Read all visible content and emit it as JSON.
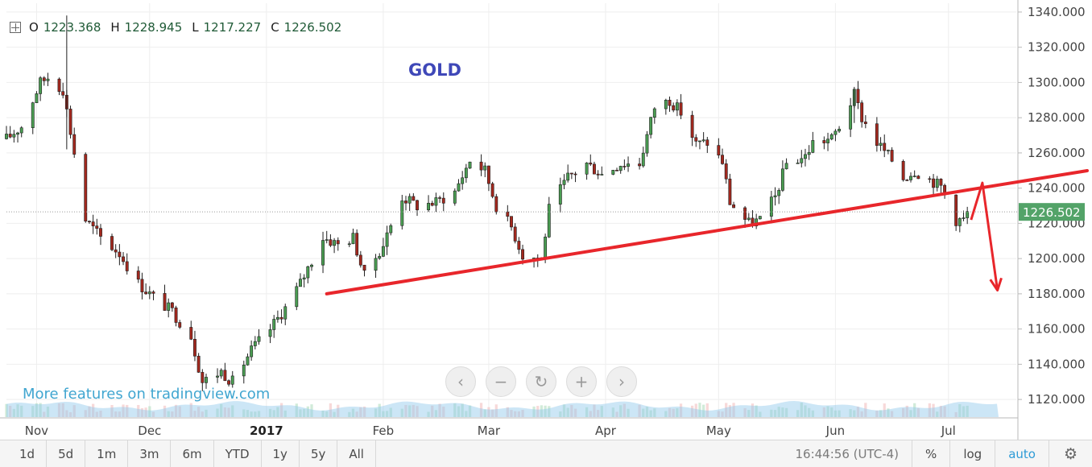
{
  "ohlc": {
    "o_label": "O",
    "o": "1223.368",
    "h_label": "H",
    "h": "1228.945",
    "l_label": "L",
    "l": "1217.227",
    "c_label": "C",
    "c": "1226.502"
  },
  "watermark": "More features on tradingview.com",
  "nav": {
    "left_icon": "‹",
    "zoom_out_icon": "−",
    "reset_icon": "↻",
    "zoom_in_icon": "+",
    "right_icon": "›"
  },
  "toolbar": {
    "ranges": [
      "1d",
      "5d",
      "1m",
      "3m",
      "6m",
      "YTD",
      "1y",
      "5y",
      "All"
    ],
    "clock": "16:44:56 (UTC-4)",
    "percent": "%",
    "log": "log",
    "auto": "auto",
    "settings_icon": "⚙"
  },
  "colors": {
    "up": "#4a9d52",
    "down": "#a3281e",
    "trendline": "#e8262b",
    "last_price": "#53a368",
    "title": "#3f48b8"
  },
  "chart_data": {
    "type": "candlestick",
    "title": "GOLD",
    "ylim": [
      1110,
      1345
    ],
    "yticks": [
      "1120.000",
      "1140.000",
      "1160.000",
      "1180.000",
      "1200.000",
      "1220.000",
      "1240.000",
      "1260.000",
      "1280.000",
      "1300.000",
      "1320.000",
      "1340.000"
    ],
    "xticks": [
      {
        "label": "Nov",
        "date": "2016-11-01"
      },
      {
        "label": "Dec",
        "date": "2016-12-01"
      },
      {
        "label": "2017",
        "date": "2017-01-01"
      },
      {
        "label": "Feb",
        "date": "2017-02-01"
      },
      {
        "label": "Mar",
        "date": "2017-03-01"
      },
      {
        "label": "Apr",
        "date": "2017-04-01"
      },
      {
        "label": "May",
        "date": "2017-05-01"
      },
      {
        "label": "Jun",
        "date": "2017-06-01"
      },
      {
        "label": "Jul",
        "date": "2017-07-01"
      }
    ],
    "x_start": "2016-10-24",
    "x_end": "2017-07-19",
    "last_price": "1226.502",
    "anchors": [
      {
        "date": "2016-10-24",
        "price": 1268
      },
      {
        "date": "2016-10-28",
        "price": 1275
      },
      {
        "date": "2016-11-02",
        "price": 1300
      },
      {
        "date": "2016-11-04",
        "price": 1303
      },
      {
        "date": "2016-11-08",
        "price": 1296
      },
      {
        "date": "2016-11-11",
        "price": 1260
      },
      {
        "date": "2016-11-14",
        "price": 1222
      },
      {
        "date": "2016-11-18",
        "price": 1212
      },
      {
        "date": "2016-11-23",
        "price": 1203
      },
      {
        "date": "2016-11-28",
        "price": 1186
      },
      {
        "date": "2016-12-02",
        "price": 1178
      },
      {
        "date": "2016-12-07",
        "price": 1170
      },
      {
        "date": "2016-12-12",
        "price": 1156
      },
      {
        "date": "2016-12-15",
        "price": 1130
      },
      {
        "date": "2016-12-20",
        "price": 1136
      },
      {
        "date": "2016-12-23",
        "price": 1130
      },
      {
        "date": "2016-12-28",
        "price": 1148
      },
      {
        "date": "2017-01-02",
        "price": 1160
      },
      {
        "date": "2017-01-06",
        "price": 1172
      },
      {
        "date": "2017-01-10",
        "price": 1186
      },
      {
        "date": "2017-01-16",
        "price": 1212
      },
      {
        "date": "2017-01-20",
        "price": 1208
      },
      {
        "date": "2017-01-24",
        "price": 1212
      },
      {
        "date": "2017-01-27",
        "price": 1190
      },
      {
        "date": "2017-02-01",
        "price": 1208
      },
      {
        "date": "2017-02-06",
        "price": 1235
      },
      {
        "date": "2017-02-10",
        "price": 1230
      },
      {
        "date": "2017-02-15",
        "price": 1232
      },
      {
        "date": "2017-02-20",
        "price": 1238
      },
      {
        "date": "2017-02-24",
        "price": 1256
      },
      {
        "date": "2017-02-28",
        "price": 1250
      },
      {
        "date": "2017-03-03",
        "price": 1230
      },
      {
        "date": "2017-03-07",
        "price": 1218
      },
      {
        "date": "2017-03-10",
        "price": 1202
      },
      {
        "date": "2017-03-15",
        "price": 1200
      },
      {
        "date": "2017-03-17",
        "price": 1228
      },
      {
        "date": "2017-03-22",
        "price": 1246
      },
      {
        "date": "2017-03-27",
        "price": 1254
      },
      {
        "date": "2017-03-31",
        "price": 1248
      },
      {
        "date": "2017-04-05",
        "price": 1254
      },
      {
        "date": "2017-04-10",
        "price": 1254
      },
      {
        "date": "2017-04-14",
        "price": 1286
      },
      {
        "date": "2017-04-18",
        "price": 1290
      },
      {
        "date": "2017-04-21",
        "price": 1283
      },
      {
        "date": "2017-04-25",
        "price": 1265
      },
      {
        "date": "2017-04-28",
        "price": 1266
      },
      {
        "date": "2017-05-02",
        "price": 1255
      },
      {
        "date": "2017-05-04",
        "price": 1232
      },
      {
        "date": "2017-05-09",
        "price": 1220
      },
      {
        "date": "2017-05-12",
        "price": 1222
      },
      {
        "date": "2017-05-16",
        "price": 1235
      },
      {
        "date": "2017-05-19",
        "price": 1254
      },
      {
        "date": "2017-05-24",
        "price": 1258
      },
      {
        "date": "2017-05-26",
        "price": 1266
      },
      {
        "date": "2017-05-31",
        "price": 1268
      },
      {
        "date": "2017-06-02",
        "price": 1275
      },
      {
        "date": "2017-06-06",
        "price": 1293
      },
      {
        "date": "2017-06-08",
        "price": 1280
      },
      {
        "date": "2017-06-12",
        "price": 1266
      },
      {
        "date": "2017-06-16",
        "price": 1256
      },
      {
        "date": "2017-06-19",
        "price": 1246
      },
      {
        "date": "2017-06-22",
        "price": 1250
      },
      {
        "date": "2017-06-26",
        "price": 1245
      },
      {
        "date": "2017-06-29",
        "price": 1241
      },
      {
        "date": "2017-07-03",
        "price": 1222
      },
      {
        "date": "2017-07-05",
        "price": 1222
      },
      {
        "date": "2017-07-06",
        "price": 1226
      }
    ],
    "spikes": [
      {
        "date": "2016-11-09",
        "high": 1338,
        "low": 1262
      },
      {
        "date": "2017-06-06",
        "high": 1296,
        "low": 1277
      }
    ],
    "trendline": [
      {
        "date": "2017-01-17",
        "price": 1180
      },
      {
        "date": "2017-07-19",
        "price": 1249
      }
    ],
    "projection_arrow": [
      {
        "date": "2017-07-07",
        "price": 1222
      },
      {
        "date": "2017-07-10",
        "price": 1243
      },
      {
        "date": "2017-07-14",
        "price": 1182
      }
    ]
  }
}
